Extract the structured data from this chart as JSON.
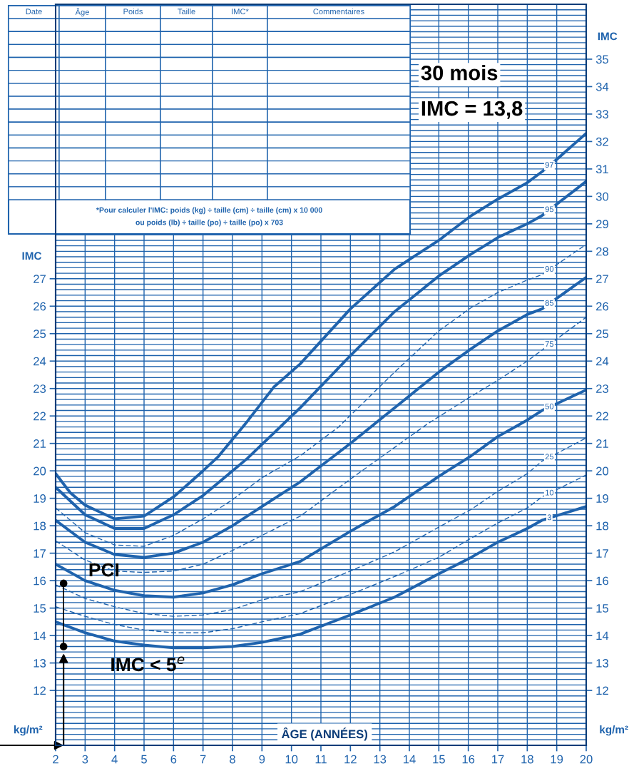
{
  "chart_data": {
    "type": "line",
    "xlabel": "ÂGE (ANNÉES)",
    "ylabel": "IMC",
    "y2label": "IMC",
    "xlim": [
      2,
      20
    ],
    "xticks": [
      2,
      3,
      4,
      5,
      6,
      7,
      8,
      9,
      10,
      11,
      12,
      13,
      14,
      15,
      16,
      17,
      18,
      19,
      20
    ],
    "ylim": [
      10,
      37
    ],
    "yticks": [
      12,
      13,
      14,
      15,
      16,
      17,
      18,
      19,
      20,
      21,
      22,
      23,
      24,
      25,
      26,
      27
    ],
    "y2lim": [
      10,
      37
    ],
    "y2ticks": [
      12,
      13,
      14,
      15,
      16,
      17,
      18,
      19,
      20,
      21,
      22,
      23,
      24,
      25,
      26,
      27,
      28,
      29,
      30,
      31,
      32,
      33,
      34,
      35
    ],
    "grid": true,
    "legend": false,
    "series": [
      {
        "name": "97",
        "color": "#1f63ad",
        "line_style": "solid",
        "x": [
          2,
          2.5,
          3,
          4,
          5,
          6,
          7,
          7.5,
          8.5,
          9.4,
          10.3,
          12,
          13.5,
          15,
          16.1,
          17,
          18,
          18.5,
          19,
          20
        ],
        "values": [
          19.9,
          19.2,
          18.75,
          18.25,
          18.35,
          19.05,
          20.0,
          20.5,
          21.8,
          23.05,
          23.9,
          25.9,
          27.35,
          28.4,
          29.3,
          29.9,
          30.5,
          30.9,
          31.35,
          32.3
        ]
      },
      {
        "name": "95",
        "color": "#1f63ad",
        "line_style": "solid",
        "x": [
          2,
          3,
          4,
          5,
          6,
          7,
          8,
          8.5,
          10.3,
          12,
          13.5,
          15,
          16.1,
          17,
          18,
          18.5,
          20
        ],
        "values": [
          19.4,
          18.4,
          17.9,
          17.9,
          18.4,
          19.1,
          20.0,
          20.45,
          22.3,
          24.2,
          25.8,
          27.1,
          27.9,
          28.5,
          29.0,
          29.3,
          30.55
        ]
      },
      {
        "name": "90",
        "color": "#1f63ad",
        "line_style": "dashed",
        "x": [
          2,
          3,
          4,
          5,
          6,
          7,
          8,
          9,
          10.3,
          11.6,
          13.5,
          15,
          16.1,
          17,
          18,
          18.5,
          20
        ],
        "values": [
          18.65,
          17.75,
          17.3,
          17.25,
          17.65,
          18.25,
          18.95,
          19.75,
          20.55,
          21.6,
          23.6,
          25.1,
          25.95,
          26.5,
          26.95,
          27.15,
          28.25
        ]
      },
      {
        "name": "85",
        "color": "#1f63ad",
        "line_style": "solid",
        "x": [
          2,
          3,
          4,
          5,
          6,
          7,
          8,
          9,
          10.3,
          12,
          13.5,
          15,
          16.1,
          17,
          18,
          18.5,
          20
        ],
        "values": [
          18.2,
          17.4,
          16.95,
          16.85,
          17.0,
          17.4,
          18.0,
          18.7,
          19.6,
          21.0,
          22.3,
          23.6,
          24.45,
          25.1,
          25.7,
          25.9,
          27.05
        ]
      },
      {
        "name": "75",
        "color": "#1f63ad",
        "line_style": "dashed",
        "x": [
          2,
          3,
          4,
          5,
          6,
          7,
          8,
          9,
          10.3,
          12,
          14.6,
          16,
          17,
          18,
          18.5,
          20
        ],
        "values": [
          17.45,
          16.75,
          16.35,
          16.3,
          16.35,
          16.6,
          17.1,
          17.65,
          18.35,
          19.7,
          21.7,
          22.65,
          23.3,
          24.0,
          24.4,
          25.6
        ]
      },
      {
        "name": "50",
        "color": "#1f63ad",
        "line_style": "solid",
        "x": [
          2,
          3,
          4,
          5,
          6,
          7,
          8,
          9,
          10.3,
          12,
          13.5,
          15,
          16.1,
          17,
          18,
          18.5,
          20
        ],
        "values": [
          16.6,
          16.0,
          15.65,
          15.45,
          15.4,
          15.55,
          15.85,
          16.25,
          16.7,
          17.8,
          18.7,
          19.8,
          20.55,
          21.25,
          21.85,
          22.2,
          22.95
        ]
      },
      {
        "name": "25",
        "color": "#1f63ad",
        "line_style": "dashed",
        "x": [
          2,
          3,
          4,
          5,
          6,
          7,
          8,
          9,
          10.3,
          12,
          13.5,
          15,
          16.1,
          17,
          18,
          18.5,
          20
        ],
        "values": [
          15.85,
          15.35,
          15.05,
          14.8,
          14.7,
          14.75,
          14.95,
          15.3,
          15.6,
          16.35,
          17.05,
          17.95,
          18.6,
          19.25,
          19.9,
          20.35,
          21.2
        ]
      },
      {
        "name": "10",
        "color": "#1f63ad",
        "line_style": "dashed",
        "x": [
          2,
          3,
          4,
          5,
          6,
          7,
          8,
          9,
          10.3,
          12,
          13.5,
          15,
          16.1,
          17,
          18,
          18.5,
          20
        ],
        "values": [
          15.05,
          14.7,
          14.4,
          14.2,
          14.1,
          14.1,
          14.25,
          14.5,
          14.8,
          15.5,
          16.15,
          16.85,
          17.55,
          18.1,
          18.65,
          19.05,
          19.85
        ]
      },
      {
        "name": "3",
        "color": "#1f63ad",
        "line_style": "solid",
        "x": [
          2,
          3,
          4,
          5,
          6,
          7,
          8,
          9,
          10.3,
          12,
          13.5,
          15,
          16.1,
          17,
          18,
          18.5,
          20
        ],
        "values": [
          14.5,
          14.1,
          13.8,
          13.65,
          13.55,
          13.55,
          13.6,
          13.75,
          14.05,
          14.75,
          15.4,
          16.25,
          16.85,
          17.4,
          17.9,
          18.2,
          18.7
        ]
      },
      {
        "type": "scatter",
        "color": "#000000",
        "marker": "circle",
        "x": [
          2.27,
          2.27
        ],
        "values": [
          15.9,
          13.6
        ]
      }
    ],
    "annotations": [
      "30 mois",
      "IMC = 13,8",
      "*Pour calculer l'IMC: poids (kg) ÷ taille (cm) ÷ taille (cm) x 10 000",
      "ou poids (lb) ÷ taille (po) ÷ taille (po) x 703",
      "kg/m²",
      "kg/m²",
      "Date",
      "Âge",
      "Poids",
      "Taille",
      "IMC*",
      "Commentaires",
      {
        "text": "PCI",
        "x": 2.27,
        "y": 15.9
      },
      {
        "text": "IMC < 5$^{e}$",
        "x": 2.27,
        "y": 13.6
      }
    ]
  }
}
